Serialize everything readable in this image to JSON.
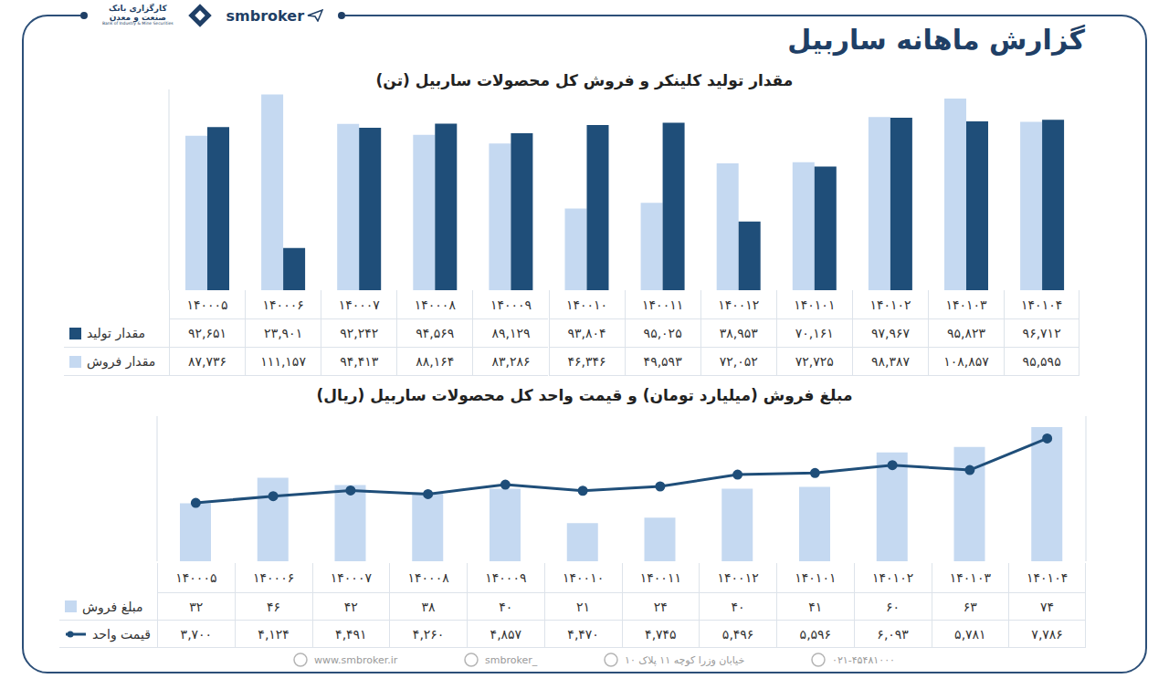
{
  "header": {
    "title": "گزارش ماهانه ساربیل",
    "brand": "smbroker",
    "logo_lines": [
      "کارگزاری بانک",
      "صنعت و معدن"
    ],
    "logo_caption": "Bank of Industry & Mine Securities"
  },
  "chart_data": [
    {
      "type": "bar",
      "title": "مقدار تولید کلینکر و فروش کل محصولات ساربیل (تن)",
      "categories": [
        "۱۴۰۰۰۵",
        "۱۴۰۰۰۶",
        "۱۴۰۰۰۷",
        "۱۴۰۰۰۸",
        "۱۴۰۰۰۹",
        "۱۴۰۰۱۰",
        "۱۴۰۰۱۱",
        "۱۴۰۰۱۲",
        "۱۴۰۱۰۱",
        "۱۴۰۱۰۲",
        "۱۴۰۱۰۳",
        "۱۴۰۱۰۴"
      ],
      "series": [
        {
          "name": "مقدار تولید",
          "color": "#1f4e79",
          "values": [
            92651,
            23901,
            92242,
            94569,
            89129,
            93804,
            95025,
            38953,
            70161,
            97967,
            95823,
            96712
          ],
          "value_labels": [
            "۹۲,۶۵۱",
            "۲۳,۹۰۱",
            "۹۲,۲۴۲",
            "۹۴,۵۶۹",
            "۸۹,۱۲۹",
            "۹۳,۸۰۴",
            "۹۵,۰۲۵",
            "۳۸,۹۵۳",
            "۷۰,۱۶۱",
            "۹۷,۹۶۷",
            "۹۵,۸۲۳",
            "۹۶,۷۱۲"
          ]
        },
        {
          "name": "مقدار فروش",
          "color": "#c5d9f1",
          "values": [
            87736,
            111157,
            94413,
            88164,
            83286,
            46346,
            49593,
            72052,
            72725,
            98387,
            108857,
            95595
          ],
          "value_labels": [
            "۸۷,۷۳۶",
            "۱۱۱,۱۵۷",
            "۹۴,۴۱۳",
            "۸۸,۱۶۴",
            "۸۳,۲۸۶",
            "۴۶,۳۴۶",
            "۴۹,۵۹۳",
            "۷۲,۰۵۲",
            "۷۲,۷۲۵",
            "۹۸,۳۸۷",
            "۱۰۸,۸۵۷",
            "۹۵,۵۹۵"
          ]
        }
      ],
      "ylim": [
        0,
        114000
      ],
      "tick_labels": false,
      "grid": false
    },
    {
      "type": "bar",
      "title": "مبلغ فروش (میلیارد تومان) و قیمت واحد کل محصولات ساربیل (ریال)",
      "categories": [
        "۱۴۰۰۰۵",
        "۱۴۰۰۰۶",
        "۱۴۰۰۰۷",
        "۱۴۰۰۰۸",
        "۱۴۰۰۰۹",
        "۱۴۰۰۱۰",
        "۱۴۰۰۱۱",
        "۱۴۰۰۱۲",
        "۱۴۰۱۰۱",
        "۱۴۰۱۰۲",
        "۱۴۰۱۰۳",
        "۱۴۰۱۰۴"
      ],
      "series": [
        {
          "name": "مبلغ فروش",
          "type": "bar",
          "color": "#c5d9f1",
          "values": [
            32,
            46,
            42,
            38,
            40,
            21,
            24,
            40,
            41,
            60,
            63,
            74
          ],
          "value_labels": [
            "۳۲",
            "۴۶",
            "۴۲",
            "۳۸",
            "۴۰",
            "۲۱",
            "۲۴",
            "۴۰",
            "۴۱",
            "۶۰",
            "۶۳",
            "۷۴"
          ]
        },
        {
          "name": "قیمت واحد",
          "type": "line",
          "axis": "y2",
          "color": "#1f4e79",
          "marker": "circle",
          "values": [
            3700,
            4124,
            4491,
            4260,
            4857,
            4470,
            4745,
            5496,
            5596,
            6093,
            5781,
            7786
          ],
          "value_labels": [
            "۳,۷۰۰",
            "۴,۱۲۴",
            "۴,۴۹۱",
            "۴,۲۶۰",
            "۴,۸۵۷",
            "۴,۴۷۰",
            "۴,۷۴۵",
            "۵,۴۹۶",
            "۵,۵۹۶",
            "۶,۰۹۳",
            "۵,۷۸۱",
            "۷,۷۸۶"
          ]
        }
      ],
      "ylim": [
        0,
        80
      ],
      "y2lim": [
        0,
        9200
      ],
      "tick_labels": false,
      "grid": false
    }
  ],
  "footer": {
    "website": "www.smbroker.ir",
    "instagram": "smbroker_",
    "address": "خیابان وزرا کوچه ۱۱ پلاک ۱۰",
    "phone": "۰۲۱-۴۵۴۸۱۰۰۰"
  }
}
